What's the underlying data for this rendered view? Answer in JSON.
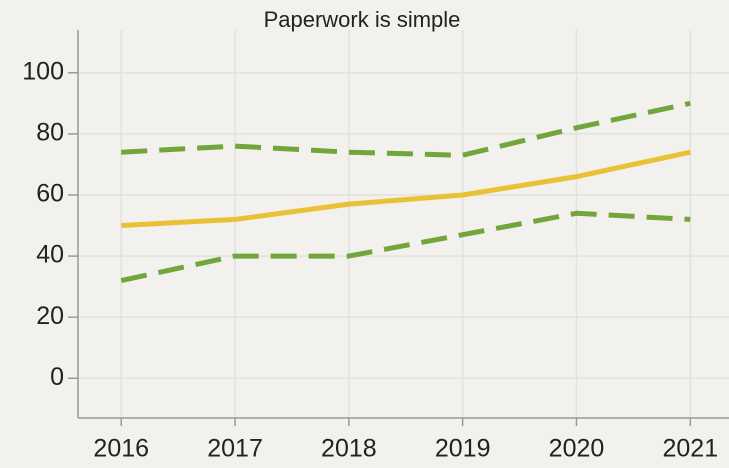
{
  "chart_data": {
    "type": "line",
    "title": "Paperwork is simple",
    "x": [
      2016,
      2017,
      2018,
      2019,
      2020,
      2021
    ],
    "series": [
      {
        "color": "#72a53a",
        "style": "dashed",
        "values": [
          74,
          76,
          74,
          73,
          82,
          90
        ]
      },
      {
        "color": "#e8c234",
        "style": "solid",
        "values": [
          50,
          52,
          57,
          60,
          66,
          74
        ]
      },
      {
        "color": "#72a53a",
        "style": "dashed",
        "values": [
          32,
          40,
          40,
          47,
          54,
          52
        ]
      }
    ],
    "xlim": [
      2015.62,
      2021.34
    ],
    "xticks": [
      2016,
      2017,
      2018,
      2019,
      2020,
      2021
    ],
    "ylim": [
      -13,
      114
    ],
    "yticks": [
      0,
      20,
      40,
      60,
      80,
      100
    ],
    "grid": true
  }
}
